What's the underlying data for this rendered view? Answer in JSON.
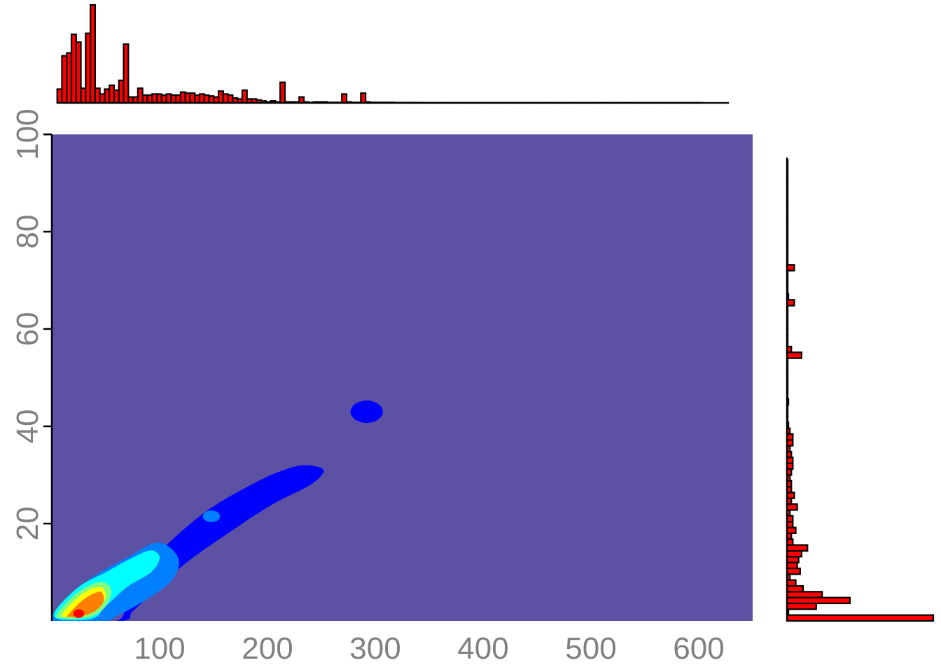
{
  "colors": {
    "panel_background": "#5d51a3",
    "histogram_fill": "#ff0000",
    "histogram_outline": "#000000",
    "tick_text": "#808080",
    "density_palette": [
      "#0000ff",
      "#0080ff",
      "#00ffff",
      "#80ff80",
      "#ffff00",
      "#ff8000",
      "#ff0000"
    ]
  },
  "chart_data": [
    {
      "type": "heatmap",
      "title": "",
      "xlabel": "",
      "ylabel": "",
      "xlim": [
        0,
        650
      ],
      "ylim": [
        0,
        100
      ],
      "x_ticks": [
        100,
        200,
        300,
        400,
        500,
        600
      ],
      "y_ticks": [
        20,
        40,
        60,
        80,
        100
      ],
      "grid": false,
      "legend": "none",
      "density_regions": [
        {
          "level": 1,
          "color": "#0000ff",
          "shape": "ridge",
          "points": [
            [
              0,
              0
            ],
            [
              60,
              0
            ],
            [
              70,
              5
            ],
            [
              95,
              13
            ],
            [
              140,
              22
            ],
            [
              185,
              28
            ],
            [
              215,
              31
            ],
            [
              235,
              32
            ],
            [
              252,
              31
            ],
            [
              240,
              28
            ],
            [
              205,
              24
            ],
            [
              170,
              19
            ],
            [
              125,
              12
            ],
            [
              95,
              6
            ],
            [
              75,
              2
            ],
            [
              65,
              0
            ]
          ]
        },
        {
          "level": 1,
          "color": "#0000ff",
          "shape": "blob",
          "cx": 292,
          "cy": 43,
          "rx": 15,
          "ry": 2.3
        },
        {
          "level": 2,
          "color": "#0080ff",
          "shape": "ridge",
          "points": [
            [
              0,
              1
            ],
            [
              20,
              6
            ],
            [
              45,
              10
            ],
            [
              70,
              13
            ],
            [
              95,
              16
            ],
            [
              110,
              15
            ],
            [
              118,
              12
            ],
            [
              110,
              8
            ],
            [
              85,
              4
            ],
            [
              60,
              1
            ],
            [
              50,
              0
            ],
            [
              5,
              0
            ]
          ]
        },
        {
          "level": 2,
          "color": "#0080ff",
          "shape": "blob",
          "cx": 148,
          "cy": 21.5,
          "rx": 8,
          "ry": 1.2
        },
        {
          "level": 3,
          "color": "#00ffff",
          "shape": "ridge",
          "points": [
            [
              3,
              2
            ],
            [
              25,
              7
            ],
            [
              50,
              10
            ],
            [
              75,
              13
            ],
            [
              92,
              14.5
            ],
            [
              100,
              13
            ],
            [
              92,
              10
            ],
            [
              70,
              7
            ],
            [
              50,
              3
            ],
            [
              38,
              0.5
            ],
            [
              8,
              0.3
            ]
          ]
        },
        {
          "level": 4,
          "color": "#80ff80",
          "shape": "ridge",
          "points": [
            [
              5,
              1.5
            ],
            [
              25,
              6
            ],
            [
              45,
              8
            ],
            [
              55,
              6.5
            ],
            [
              50,
              3
            ],
            [
              35,
              0.8
            ],
            [
              10,
              0.5
            ]
          ]
        },
        {
          "level": 5,
          "color": "#ffff00",
          "shape": "ridge",
          "points": [
            [
              10,
              1.5
            ],
            [
              28,
              5.5
            ],
            [
              45,
              7
            ],
            [
              50,
              5
            ],
            [
              43,
              2.5
            ],
            [
              30,
              1
            ],
            [
              15,
              0.8
            ]
          ]
        },
        {
          "level": 6,
          "color": "#ff8000",
          "shape": "ridge",
          "points": [
            [
              15,
              1.2
            ],
            [
              30,
              4.5
            ],
            [
              45,
              6
            ],
            [
              48,
              4
            ],
            [
              40,
              2
            ],
            [
              28,
              1
            ],
            [
              18,
              0.8
            ]
          ]
        },
        {
          "level": 7,
          "color": "#ff0000",
          "shape": "blob",
          "cx": 25,
          "cy": 1.5,
          "rx": 5,
          "ry": 0.9
        }
      ]
    },
    {
      "type": "bar",
      "title": "",
      "orientation": "vertical",
      "placement": "top",
      "x_range": [
        5,
        615
      ],
      "bin_width": 4.4,
      "values": [
        14,
        48,
        51,
        70,
        62,
        15,
        71,
        100,
        15,
        9,
        14,
        18,
        13,
        23,
        60,
        6,
        6,
        15,
        8,
        8,
        9,
        9,
        8,
        9,
        8,
        8,
        11,
        10,
        10,
        8,
        9,
        8,
        7,
        6,
        12,
        9,
        8,
        5,
        4,
        13,
        4,
        4,
        3,
        2,
        1,
        2,
        1,
        21,
        1,
        1,
        1,
        6,
        1,
        0.5,
        1,
        1,
        1,
        0.5,
        0.5,
        0.5,
        9,
        1,
        0.5,
        0.5,
        10,
        1,
        0.5,
        0.5,
        0.5,
        0.5,
        0.5,
        0.3,
        0.3,
        0.3,
        0.3,
        0.3,
        0.2,
        0.2,
        0.2,
        0.2,
        0.2,
        0.2,
        0.2,
        0.2,
        0.2,
        0.2,
        0.2,
        0.2,
        0.2,
        0.2,
        0.2,
        0.2,
        0.2,
        0.2,
        0.2,
        0.2,
        0.2,
        0.2,
        0.2,
        0.2,
        0.2,
        0.2,
        0.2,
        0.2,
        0.2,
        0.2,
        0.2,
        0.2,
        0.2,
        0.2,
        0.2,
        0.2,
        0.2,
        0.2,
        0.2,
        0.2,
        0.2,
        0.2,
        0.2,
        0.2,
        0.2,
        0.2,
        0.2,
        0.2,
        0.2,
        0.2,
        0.2,
        0.2,
        0.2,
        0.2,
        0.2,
        0.2,
        0.2,
        0.2,
        0.2,
        0.2
      ]
    },
    {
      "type": "bar",
      "title": "",
      "orientation": "horizontal",
      "placement": "right",
      "y_range": [
        0,
        95
      ],
      "bin_width": 1.2,
      "values": [
        100,
        1,
        20,
        43,
        24,
        11,
        6,
        2,
        9,
        7,
        8,
        10,
        14,
        4,
        3,
        6,
        4,
        4,
        2,
        7,
        3,
        5,
        3,
        3,
        2,
        3,
        4,
        4,
        3,
        2,
        4,
        4,
        2,
        1,
        0.5,
        0.5,
        0.5,
        1,
        0.5,
        0.5,
        0.5,
        0.5,
        0.5,
        0.5,
        0.5,
        10,
        3,
        0.5,
        0.5,
        0.5,
        0.5,
        0.5,
        0.5,
        0.5,
        5,
        1,
        0.5,
        0.5,
        0.5,
        0.5,
        5,
        0.5,
        0.5,
        0.5,
        0.5,
        0.5,
        0.5,
        0.5,
        0.5,
        0.5,
        0.5,
        0.5,
        0.5,
        0.5,
        0.5,
        0.5,
        0.5,
        0.5,
        0.5
      ]
    }
  ]
}
